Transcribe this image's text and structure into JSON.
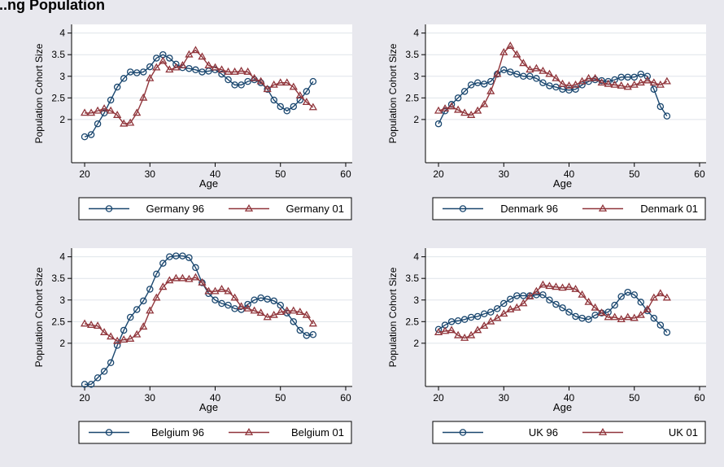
{
  "page_title": "...ng Population",
  "colors": {
    "background": "#e8e8ee",
    "plot_area": "#ffffff",
    "series_96": "#1a476f",
    "series_01": "#90353b",
    "grid": "#dfe4ea",
    "axis": "#000000"
  },
  "chart_data": [
    {
      "type": "line",
      "country": "Germany",
      "xlabel": "Age",
      "ylabel": "Population Cohort Size",
      "xlim": [
        18,
        61
      ],
      "ylim": [
        1,
        4.2
      ],
      "xticks": [
        20,
        30,
        40,
        50,
        60
      ],
      "yticks": [
        2,
        2.5,
        3,
        3.5,
        4
      ],
      "ytick_labels": [
        "2",
        "2.5",
        "3",
        "3.5",
        "4"
      ],
      "grid": true,
      "legend_position": "bottom",
      "series": [
        {
          "name": "Germany 96",
          "marker": "circle",
          "x": [
            20,
            21,
            22,
            23,
            24,
            25,
            26,
            27,
            28,
            29,
            30,
            31,
            32,
            33,
            34,
            35,
            36,
            37,
            38,
            39,
            40,
            41,
            42,
            43,
            44,
            45,
            46,
            47,
            48,
            49,
            50,
            51,
            52,
            53,
            54,
            55
          ],
          "y": [
            1.6,
            1.65,
            1.9,
            2.15,
            2.45,
            2.75,
            2.95,
            3.1,
            3.08,
            3.1,
            3.22,
            3.42,
            3.5,
            3.42,
            3.28,
            3.2,
            3.18,
            3.15,
            3.1,
            3.12,
            3.15,
            3.05,
            2.92,
            2.8,
            2.8,
            2.88,
            2.92,
            2.85,
            2.7,
            2.45,
            2.3,
            2.2,
            2.3,
            2.45,
            2.65,
            2.88
          ]
        },
        {
          "name": "Germany 01",
          "marker": "triangle",
          "x": [
            20,
            21,
            22,
            23,
            24,
            25,
            26,
            27,
            28,
            29,
            30,
            31,
            32,
            33,
            34,
            35,
            36,
            37,
            38,
            39,
            40,
            41,
            42,
            43,
            44,
            45,
            46,
            47,
            48,
            49,
            50,
            51,
            52,
            53,
            54,
            55
          ],
          "y": [
            2.15,
            2.15,
            2.2,
            2.25,
            2.2,
            2.1,
            1.9,
            1.92,
            2.15,
            2.5,
            2.95,
            3.2,
            3.35,
            3.15,
            3.2,
            3.25,
            3.5,
            3.6,
            3.45,
            3.25,
            3.2,
            3.15,
            3.1,
            3.1,
            3.12,
            3.1,
            2.95,
            2.88,
            2.7,
            2.8,
            2.85,
            2.85,
            2.75,
            2.55,
            2.4,
            2.28
          ]
        }
      ]
    },
    {
      "type": "line",
      "country": "Denmark",
      "xlabel": "Age",
      "ylabel": "Population Cohort Size",
      "xlim": [
        18,
        61
      ],
      "ylim": [
        1,
        4.2
      ],
      "xticks": [
        20,
        30,
        40,
        50,
        60
      ],
      "yticks": [
        2,
        2.5,
        3,
        3.5,
        4
      ],
      "ytick_labels": [
        "2",
        "2.5",
        "3",
        "3.5",
        "4"
      ],
      "grid": true,
      "legend_position": "bottom",
      "series": [
        {
          "name": "Denmark 96",
          "marker": "circle",
          "x": [
            20,
            21,
            22,
            23,
            24,
            25,
            26,
            27,
            28,
            29,
            30,
            31,
            32,
            33,
            34,
            35,
            36,
            37,
            38,
            39,
            40,
            41,
            42,
            43,
            44,
            45,
            46,
            47,
            48,
            49,
            50,
            51,
            52,
            53,
            54,
            55
          ],
          "y": [
            1.9,
            2.2,
            2.35,
            2.5,
            2.65,
            2.8,
            2.85,
            2.82,
            2.88,
            3.05,
            3.15,
            3.1,
            3.05,
            3.0,
            3.0,
            2.95,
            2.85,
            2.78,
            2.75,
            2.7,
            2.68,
            2.7,
            2.8,
            2.88,
            2.92,
            2.9,
            2.88,
            2.92,
            2.98,
            2.98,
            2.98,
            3.05,
            3.0,
            2.7,
            2.3,
            2.08
          ]
        },
        {
          "name": "Denmark 01",
          "marker": "triangle",
          "x": [
            20,
            21,
            22,
            23,
            24,
            25,
            26,
            27,
            28,
            29,
            30,
            31,
            32,
            33,
            34,
            35,
            36,
            37,
            38,
            39,
            40,
            41,
            42,
            43,
            44,
            45,
            46,
            47,
            48,
            49,
            50,
            51,
            52,
            53,
            54,
            55
          ],
          "y": [
            2.2,
            2.25,
            2.3,
            2.22,
            2.15,
            2.1,
            2.2,
            2.35,
            2.65,
            3.05,
            3.55,
            3.7,
            3.5,
            3.3,
            3.15,
            3.18,
            3.12,
            3.05,
            2.95,
            2.82,
            2.78,
            2.8,
            2.88,
            2.95,
            2.95,
            2.85,
            2.82,
            2.8,
            2.78,
            2.75,
            2.8,
            2.85,
            2.9,
            2.85,
            2.8,
            2.88
          ]
        }
      ]
    },
    {
      "type": "line",
      "country": "Belgium",
      "xlabel": "Age",
      "ylabel": "Population Cohort Size",
      "xlim": [
        18,
        61
      ],
      "ylim": [
        1,
        4.2
      ],
      "xticks": [
        20,
        30,
        40,
        50,
        60
      ],
      "yticks": [
        2,
        2.5,
        3,
        3.5,
        4
      ],
      "ytick_labels": [
        "2",
        "2.5",
        "3",
        "3.5",
        "4"
      ],
      "grid": true,
      "legend_position": "bottom",
      "series": [
        {
          "name": "Belgium 96",
          "marker": "circle",
          "x": [
            20,
            21,
            22,
            23,
            24,
            25,
            26,
            27,
            28,
            29,
            30,
            31,
            32,
            33,
            34,
            35,
            36,
            37,
            38,
            39,
            40,
            41,
            42,
            43,
            44,
            45,
            46,
            47,
            48,
            49,
            50,
            51,
            52,
            53,
            54,
            55
          ],
          "y": [
            1.05,
            1.05,
            1.2,
            1.35,
            1.55,
            1.95,
            2.3,
            2.6,
            2.78,
            2.98,
            3.25,
            3.6,
            3.85,
            4.0,
            4.02,
            4.02,
            3.98,
            3.75,
            3.4,
            3.15,
            3.0,
            2.92,
            2.88,
            2.8,
            2.78,
            2.9,
            3.0,
            3.05,
            3.02,
            2.98,
            2.88,
            2.7,
            2.5,
            2.3,
            2.18,
            2.2
          ]
        },
        {
          "name": "Belgium 01",
          "marker": "triangle",
          "x": [
            20,
            21,
            22,
            23,
            24,
            25,
            26,
            27,
            28,
            29,
            30,
            31,
            32,
            33,
            34,
            35,
            36,
            37,
            38,
            39,
            40,
            41,
            42,
            43,
            44,
            45,
            46,
            47,
            48,
            49,
            50,
            51,
            52,
            53,
            54,
            55
          ],
          "y": [
            2.45,
            2.42,
            2.4,
            2.25,
            2.15,
            2.05,
            2.08,
            2.1,
            2.2,
            2.38,
            2.75,
            3.05,
            3.3,
            3.45,
            3.5,
            3.5,
            3.48,
            3.52,
            3.4,
            3.2,
            3.2,
            3.25,
            3.2,
            3.05,
            2.85,
            2.8,
            2.75,
            2.7,
            2.6,
            2.65,
            2.72,
            2.75,
            2.75,
            2.72,
            2.65,
            2.45
          ]
        }
      ]
    },
    {
      "type": "line",
      "country": "UK",
      "xlabel": "Age",
      "ylabel": "Population Cohort Size",
      "xlim": [
        18,
        61
      ],
      "ylim": [
        1,
        4.2
      ],
      "xticks": [
        20,
        30,
        40,
        50,
        60
      ],
      "yticks": [
        2,
        2.5,
        3,
        3.5,
        4
      ],
      "ytick_labels": [
        "2",
        "2.5",
        "3",
        "3.5",
        "4"
      ],
      "grid": true,
      "legend_position": "bottom",
      "series": [
        {
          "name": "UK 96",
          "marker": "circle",
          "x": [
            20,
            21,
            22,
            23,
            24,
            25,
            26,
            27,
            28,
            29,
            30,
            31,
            32,
            33,
            34,
            35,
            36,
            37,
            38,
            39,
            40,
            41,
            42,
            43,
            44,
            45,
            46,
            47,
            48,
            49,
            50,
            51,
            52,
            53,
            54,
            55
          ],
          "y": [
            2.32,
            2.42,
            2.5,
            2.52,
            2.55,
            2.6,
            2.62,
            2.68,
            2.72,
            2.8,
            2.92,
            3.02,
            3.1,
            3.1,
            3.1,
            3.12,
            3.12,
            3.0,
            2.9,
            2.82,
            2.72,
            2.62,
            2.58,
            2.55,
            2.65,
            2.7,
            2.72,
            2.88,
            3.08,
            3.18,
            3.12,
            2.95,
            2.75,
            2.58,
            2.42,
            2.25
          ]
        },
        {
          "name": "UK 01",
          "marker": "triangle",
          "x": [
            20,
            21,
            22,
            23,
            24,
            25,
            26,
            27,
            28,
            29,
            30,
            31,
            32,
            33,
            34,
            35,
            36,
            37,
            38,
            39,
            40,
            41,
            42,
            43,
            44,
            45,
            46,
            47,
            48,
            49,
            50,
            51,
            52,
            53,
            54,
            55
          ],
          "y": [
            2.25,
            2.28,
            2.3,
            2.18,
            2.12,
            2.18,
            2.3,
            2.4,
            2.5,
            2.58,
            2.68,
            2.78,
            2.82,
            2.92,
            3.08,
            3.2,
            3.35,
            3.32,
            3.3,
            3.28,
            3.3,
            3.25,
            3.12,
            2.95,
            2.82,
            2.7,
            2.6,
            2.6,
            2.55,
            2.6,
            2.58,
            2.65,
            2.78,
            3.05,
            3.15,
            3.05
          ]
        }
      ]
    }
  ]
}
